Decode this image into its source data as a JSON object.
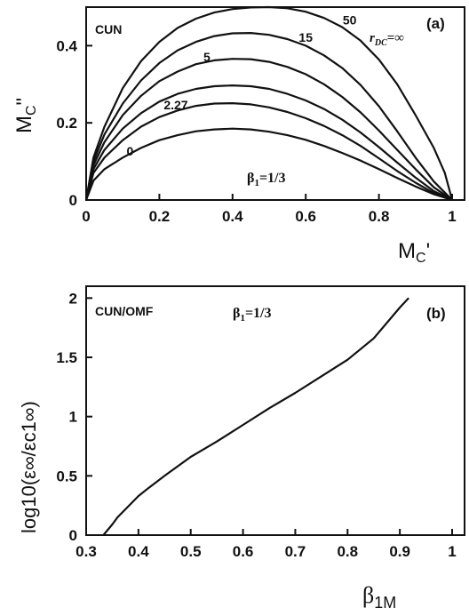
{
  "chart_data": [
    {
      "type": "line",
      "panel_label": "(a)",
      "corner_label": "CUN",
      "xlabel_main": "M",
      "xlabel_sub": "C",
      "xlabel_prime": "'",
      "ylabel_main": "M",
      "ylabel_sub": "C",
      "ylabel_prime": "\"",
      "xlim": [
        0,
        1
      ],
      "ylim": [
        0,
        0.5
      ],
      "xticks": [
        "0",
        "0.2",
        "0.4",
        "0.6",
        "0.8",
        "1"
      ],
      "yticks": [
        "0",
        "0.2",
        "0.4"
      ],
      "annotation_beta": "β",
      "annotation_beta_sub": "1",
      "annotation_beta_value": "=1/3",
      "rdc_label_r": "r",
      "rdc_label_sub": "DC",
      "rdc_label_value": "=∞",
      "series": [
        {
          "name": "0",
          "x": [
            0,
            0.02,
            0.05,
            0.1,
            0.15,
            0.2,
            0.25,
            0.3,
            0.35,
            0.4,
            0.45,
            0.5,
            0.55,
            0.6,
            0.65,
            0.7,
            0.75,
            0.8,
            0.85,
            0.9,
            0.95,
            1.0
          ],
          "y": [
            0,
            0.05,
            0.08,
            0.11,
            0.135,
            0.155,
            0.168,
            0.178,
            0.183,
            0.185,
            0.183,
            0.177,
            0.168,
            0.156,
            0.14,
            0.122,
            0.102,
            0.08,
            0.057,
            0.035,
            0.015,
            0
          ]
        },
        {
          "name": "2.27",
          "x": [
            0,
            0.02,
            0.05,
            0.1,
            0.15,
            0.2,
            0.25,
            0.3,
            0.35,
            0.4,
            0.45,
            0.5,
            0.55,
            0.6,
            0.65,
            0.7,
            0.75,
            0.8,
            0.85,
            0.9,
            0.95,
            1.0
          ],
          "y": [
            0,
            0.07,
            0.11,
            0.155,
            0.19,
            0.215,
            0.232,
            0.244,
            0.25,
            0.251,
            0.248,
            0.24,
            0.228,
            0.212,
            0.192,
            0.168,
            0.14,
            0.108,
            0.075,
            0.045,
            0.018,
            0
          ]
        },
        {
          "name": "5",
          "x": [
            0,
            0.02,
            0.05,
            0.1,
            0.15,
            0.2,
            0.25,
            0.3,
            0.35,
            0.4,
            0.45,
            0.5,
            0.55,
            0.6,
            0.65,
            0.7,
            0.75,
            0.8,
            0.85,
            0.9,
            0.95,
            1.0
          ],
          "y": [
            0,
            0.08,
            0.13,
            0.185,
            0.225,
            0.255,
            0.275,
            0.288,
            0.295,
            0.297,
            0.295,
            0.288,
            0.275,
            0.258,
            0.236,
            0.208,
            0.175,
            0.137,
            0.097,
            0.058,
            0.023,
            0
          ]
        },
        {
          "name": "15",
          "x": [
            0,
            0.02,
            0.05,
            0.1,
            0.15,
            0.2,
            0.25,
            0.3,
            0.35,
            0.4,
            0.45,
            0.5,
            0.55,
            0.6,
            0.65,
            0.7,
            0.75,
            0.8,
            0.85,
            0.9,
            0.95,
            1.0
          ],
          "y": [
            0,
            0.09,
            0.15,
            0.22,
            0.27,
            0.308,
            0.333,
            0.352,
            0.362,
            0.366,
            0.365,
            0.358,
            0.345,
            0.326,
            0.3,
            0.267,
            0.227,
            0.18,
            0.13,
            0.08,
            0.033,
            0
          ]
        },
        {
          "name": "50",
          "x": [
            0,
            0.02,
            0.05,
            0.1,
            0.15,
            0.2,
            0.25,
            0.3,
            0.35,
            0.4,
            0.45,
            0.5,
            0.55,
            0.6,
            0.65,
            0.7,
            0.75,
            0.8,
            0.85,
            0.9,
            0.95,
            1.0
          ],
          "y": [
            0,
            0.1,
            0.17,
            0.25,
            0.31,
            0.355,
            0.388,
            0.41,
            0.425,
            0.432,
            0.433,
            0.428,
            0.417,
            0.4,
            0.375,
            0.342,
            0.298,
            0.243,
            0.178,
            0.11,
            0.048,
            0
          ]
        },
        {
          "name": "∞",
          "x": [
            0,
            0.02,
            0.05,
            0.1,
            0.15,
            0.2,
            0.25,
            0.3,
            0.35,
            0.4,
            0.45,
            0.5,
            0.55,
            0.6,
            0.65,
            0.7,
            0.75,
            0.8,
            0.85,
            0.9,
            0.95,
            0.98,
            1.0
          ],
          "y": [
            0,
            0.11,
            0.19,
            0.29,
            0.36,
            0.41,
            0.446,
            0.47,
            0.486,
            0.495,
            0.499,
            0.5,
            0.497,
            0.488,
            0.472,
            0.448,
            0.413,
            0.364,
            0.3,
            0.22,
            0.135,
            0.07,
            0
          ]
        }
      ],
      "curve_labels": [
        {
          "text": "0",
          "x": 0.12,
          "y": 0.115
        },
        {
          "text": "2.27",
          "x": 0.245,
          "y": 0.235
        },
        {
          "text": "5",
          "x": 0.33,
          "y": 0.36
        },
        {
          "text": "15",
          "x": 0.6,
          "y": 0.41
        },
        {
          "text": "50",
          "x": 0.72,
          "y": 0.455
        }
      ]
    },
    {
      "type": "line",
      "panel_label": "(b)",
      "corner_label": "CUN/OMF",
      "xlabel_main": "β",
      "xlabel_sub": "1M",
      "ylabel": "log10(ε∞/εc1∞)",
      "xlim": [
        0.3,
        1
      ],
      "ylim": [
        0,
        2.1
      ],
      "xticks": [
        "0.3",
        "0.4",
        "0.5",
        "0.6",
        "0.7",
        "0.8",
        "0.9",
        "1"
      ],
      "yticks": [
        "0",
        "0.5",
        "1",
        "1.5",
        "2"
      ],
      "annotation_beta": "β",
      "annotation_beta_sub": "1",
      "annotation_beta_value": "=1/3",
      "series": [
        {
          "x": [
            0.333,
            0.35,
            0.36,
            0.38,
            0.4,
            0.42,
            0.45,
            0.5,
            0.55,
            0.6,
            0.65,
            0.7,
            0.75,
            0.8,
            0.85,
            0.9,
            0.917
          ],
          "y": [
            0,
            0.09,
            0.15,
            0.24,
            0.33,
            0.4,
            0.5,
            0.66,
            0.79,
            0.93,
            1.07,
            1.2,
            1.34,
            1.48,
            1.66,
            1.92,
            2.0
          ]
        }
      ]
    }
  ]
}
